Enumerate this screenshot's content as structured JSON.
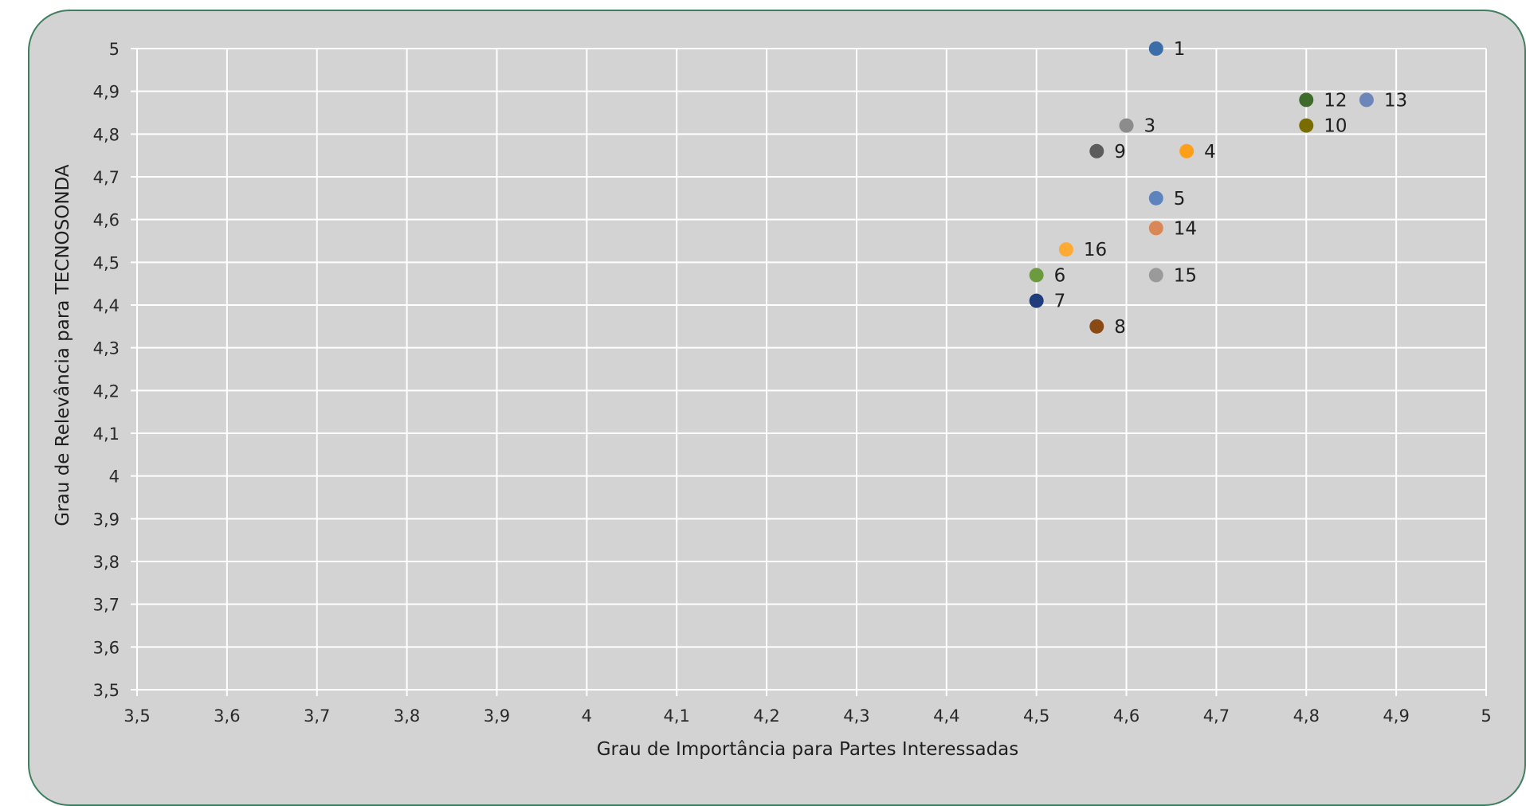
{
  "chart_data": {
    "type": "scatter",
    "xlabel": "Grau de Importância para Partes Interessadas",
    "ylabel": "Grau de Relevância para TECNOSONDA",
    "xlim": [
      3.5,
      5
    ],
    "ylim": [
      3.5,
      5
    ],
    "x_ticks": [
      "3,5",
      "3,6",
      "3,7",
      "3,8",
      "3,9",
      "4",
      "4,1",
      "4,2",
      "4,3",
      "4,4",
      "4,5",
      "4,6",
      "4,7",
      "4,8",
      "4,9",
      "5"
    ],
    "y_ticks": [
      "5",
      "4,9",
      "4,8",
      "4,7",
      "4,6",
      "4,5",
      "4,4",
      "4,3",
      "4,2",
      "4,1",
      "4",
      "3,9",
      "3,8",
      "3,7",
      "3,6",
      "3,5"
    ],
    "grid": true,
    "legend": "none",
    "points": [
      {
        "label": "1",
        "x": 4.633,
        "y": 5.0,
        "color": "#3b6ea8"
      },
      {
        "label": "3",
        "x": 4.6,
        "y": 4.82,
        "color": "#8c8c8c"
      },
      {
        "label": "4",
        "x": 4.667,
        "y": 4.76,
        "color": "#ff9f1a"
      },
      {
        "label": "5",
        "x": 4.633,
        "y": 4.65,
        "color": "#5f84bd"
      },
      {
        "label": "6",
        "x": 4.5,
        "y": 4.47,
        "color": "#6b9a3f"
      },
      {
        "label": "7",
        "x": 4.5,
        "y": 4.41,
        "color": "#1f3d7a"
      },
      {
        "label": "8",
        "x": 4.567,
        "y": 4.35,
        "color": "#8a4a14"
      },
      {
        "label": "9",
        "x": 4.567,
        "y": 4.76,
        "color": "#5c5c5c"
      },
      {
        "label": "10",
        "x": 4.8,
        "y": 4.82,
        "color": "#7a6d00"
      },
      {
        "label": "12",
        "x": 4.8,
        "y": 4.88,
        "color": "#3d6b2a"
      },
      {
        "label": "13",
        "x": 4.867,
        "y": 4.88,
        "color": "#6d86ba"
      },
      {
        "label": "14",
        "x": 4.633,
        "y": 4.58,
        "color": "#d98757"
      },
      {
        "label": "15",
        "x": 4.633,
        "y": 4.47,
        "color": "#9a9a9a"
      },
      {
        "label": "16",
        "x": 4.533,
        "y": 4.53,
        "color": "#ffaa33"
      }
    ]
  }
}
